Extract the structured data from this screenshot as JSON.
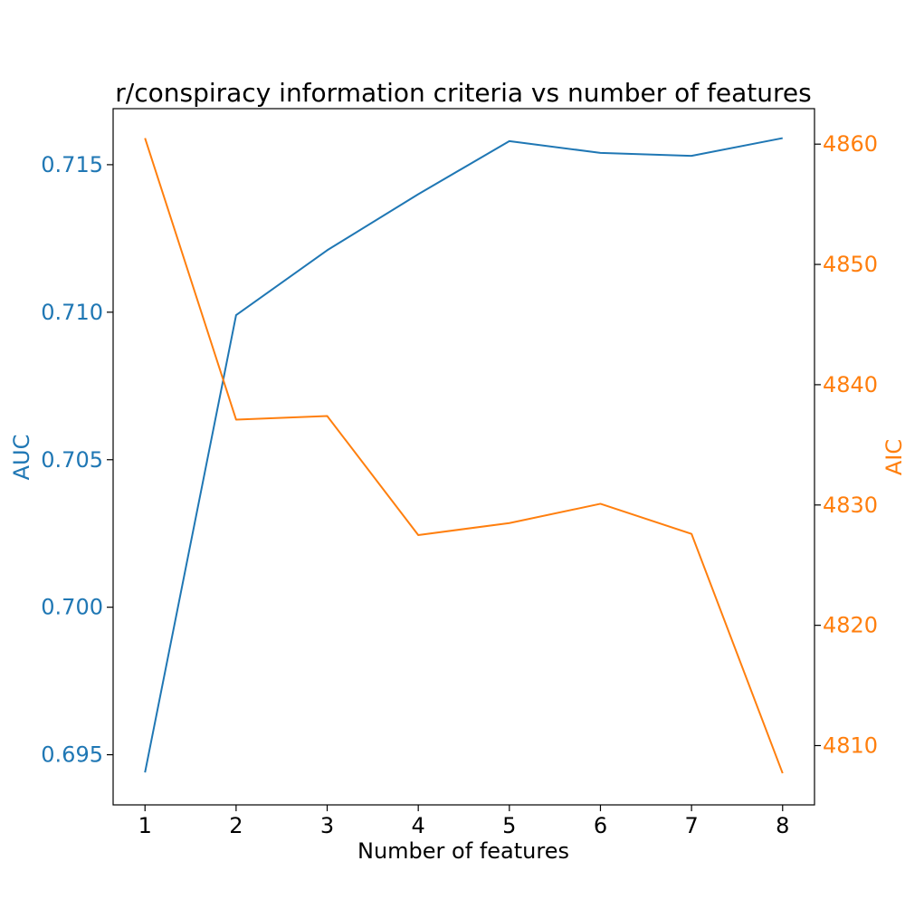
{
  "chart_data": {
    "type": "line",
    "title": "r/conspiracy information criteria vs number of features",
    "xlabel": "Number of features",
    "x": [
      1,
      2,
      3,
      4,
      5,
      6,
      7,
      8
    ],
    "xlim": [
      0.65,
      8.35
    ],
    "x_ticks": [
      "1",
      "2",
      "3",
      "4",
      "5",
      "6",
      "7",
      "8"
    ],
    "left_axis": {
      "label": "AUC",
      "color": "#1f77b4",
      "ylim": [
        0.6933,
        0.7169
      ],
      "ticks": [
        "0.695",
        "0.700",
        "0.705",
        "0.710",
        "0.715"
      ]
    },
    "right_axis": {
      "label": "AIC",
      "color": "#ff7f0e",
      "ylim": [
        4805.07,
        4862.95
      ],
      "ticks": [
        "4810",
        "4820",
        "4830",
        "4840",
        "4850",
        "4860"
      ]
    },
    "series": [
      {
        "name": "AUC",
        "axis": "left",
        "color": "#1f77b4",
        "values": [
          0.6944,
          0.7099,
          0.7121,
          0.714,
          0.7158,
          0.7154,
          0.7153,
          0.7159
        ]
      },
      {
        "name": "AIC",
        "axis": "right",
        "color": "#ff7f0e",
        "values": [
          4860.5,
          4837.1,
          4837.4,
          4827.5,
          4828.5,
          4830.1,
          4827.6,
          4807.7
        ]
      }
    ],
    "grid": false,
    "legend": "none"
  }
}
